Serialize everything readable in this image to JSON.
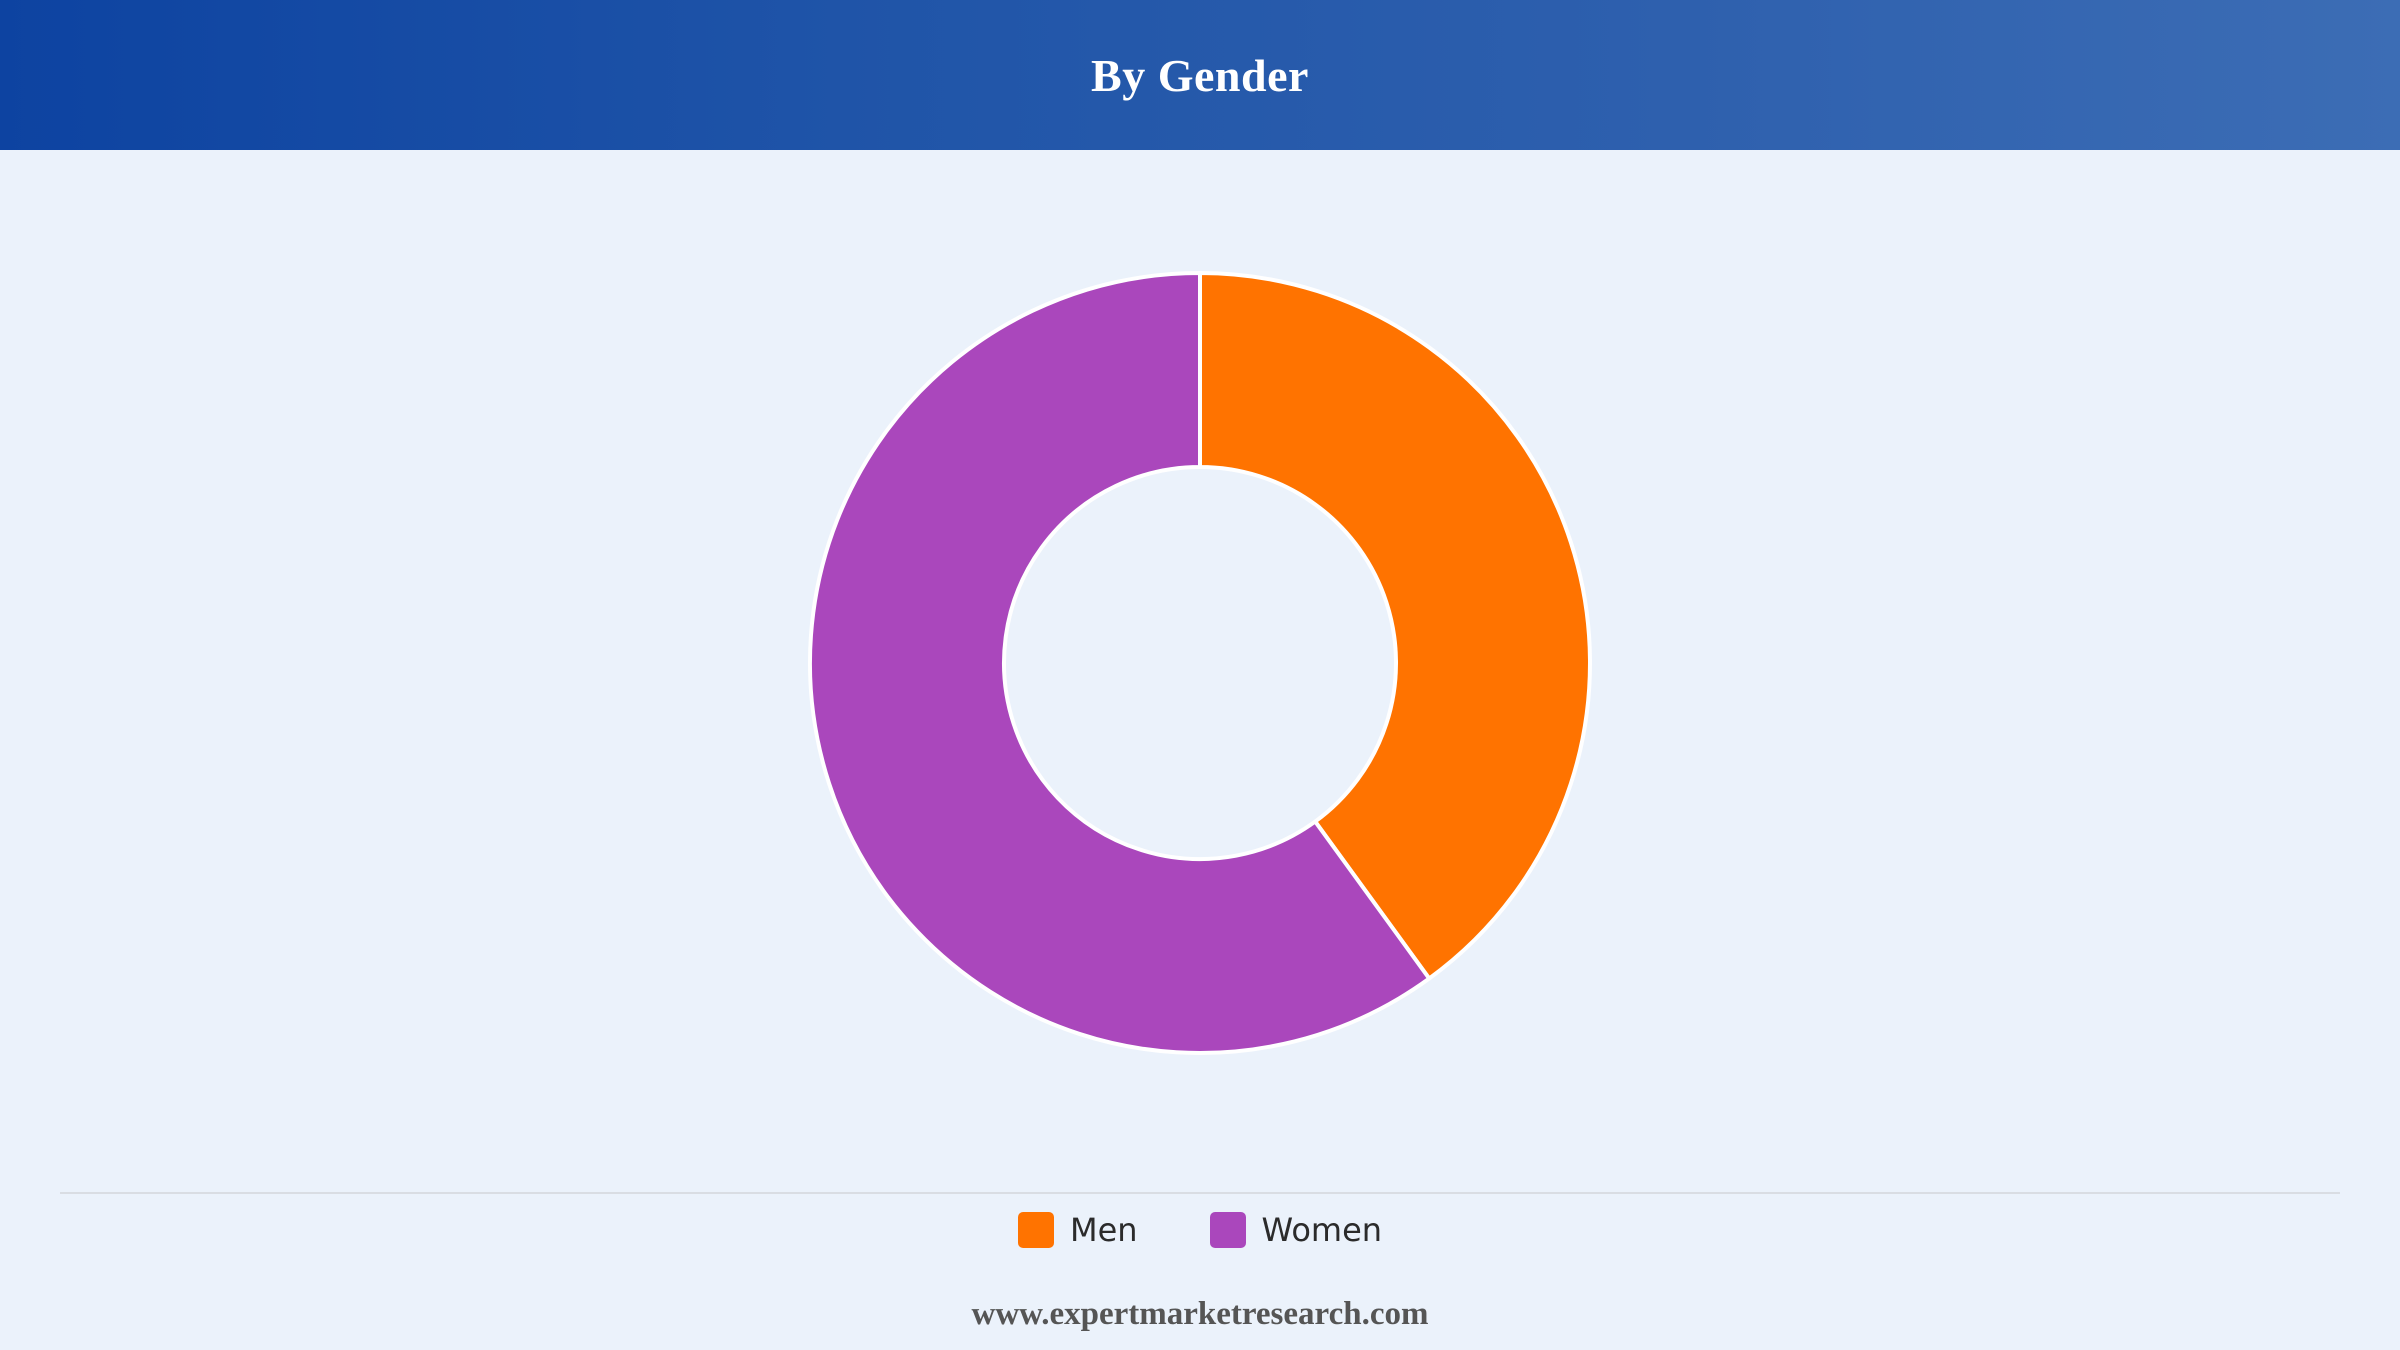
{
  "header": {
    "title": "By Gender"
  },
  "chart_data": {
    "type": "pie",
    "variant": "donut",
    "title": "By Gender",
    "categories": [
      "Men",
      "Women"
    ],
    "values": [
      40,
      60
    ],
    "unit": "%",
    "colors": [
      "#ff7300",
      "#aa47bc"
    ],
    "slice_border_color": "#ffffff",
    "legend_position": "bottom-center"
  },
  "legend": {
    "items": [
      {
        "label": "Men",
        "color": "#ff7300"
      },
      {
        "label": "Women",
        "color": "#aa47bc"
      }
    ]
  },
  "footer": {
    "source": "www.expertmarketresearch.com"
  }
}
